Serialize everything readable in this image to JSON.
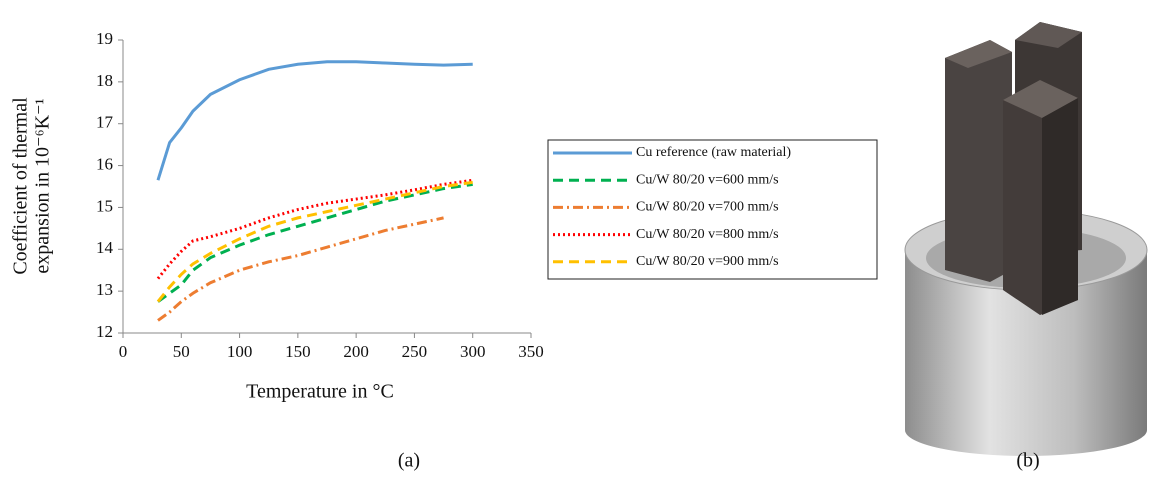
{
  "chart_data": {
    "type": "line",
    "ylabel": [
      "Coefficient of thermal",
      "expansion in 10⁻⁶K⁻¹"
    ],
    "xlabel": "Temperature in °C",
    "x": [
      30,
      40,
      50,
      60,
      75,
      100,
      125,
      150,
      175,
      200,
      225,
      250,
      275,
      300
    ],
    "xlim": [
      0,
      350
    ],
    "xticks": [
      0,
      50,
      100,
      150,
      200,
      250,
      300,
      350
    ],
    "ylim": [
      12,
      19
    ],
    "yticks": [
      12,
      13,
      14,
      15,
      16,
      17,
      18,
      19
    ],
    "grid": false,
    "series": [
      {
        "name": "Cu reference (raw material)",
        "color": "#5b9bd5",
        "dash": "solid",
        "values": [
          15.65,
          16.55,
          16.9,
          17.3,
          17.7,
          18.05,
          18.3,
          18.42,
          18.48,
          18.48,
          18.45,
          18.42,
          18.4,
          18.42
        ]
      },
      {
        "name": "Cu/W 80/20 v=600 mm/s",
        "color": "#00b050",
        "dash": "dashed",
        "values": [
          12.75,
          12.95,
          13.15,
          13.5,
          13.8,
          14.1,
          14.35,
          14.55,
          14.75,
          14.95,
          15.15,
          15.3,
          15.45,
          15.55
        ]
      },
      {
        "name": "Cu/W 80/20 v=700 mm/s",
        "color": "#ed7d31",
        "dash": "dashdot",
        "values": [
          12.3,
          12.5,
          12.75,
          12.95,
          13.2,
          13.5,
          13.7,
          13.85,
          14.05,
          14.25,
          14.45,
          14.6,
          14.75,
          null
        ]
      },
      {
        "name": "Cu/W 80/20 v=800 mm/s",
        "color": "#ff0000",
        "dash": "dotted",
        "values": [
          13.3,
          13.65,
          13.95,
          14.2,
          14.3,
          14.5,
          14.75,
          14.95,
          15.1,
          15.2,
          15.3,
          15.42,
          15.55,
          15.65
        ]
      },
      {
        "name": "Cu/W 80/20 v=900 mm/s",
        "color": "#ffc000",
        "dash": "dashed",
        "values": [
          12.75,
          13.1,
          13.4,
          13.65,
          13.9,
          14.25,
          14.55,
          14.75,
          14.9,
          15.05,
          15.2,
          15.35,
          15.5,
          15.6
        ]
      }
    ]
  },
  "captions": [
    "(a)",
    "(b)"
  ]
}
